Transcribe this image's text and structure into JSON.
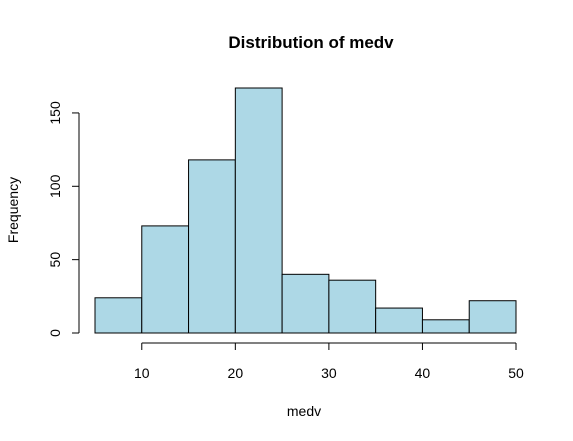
{
  "chart_data": {
    "type": "bar",
    "title": "Distribution of medv",
    "xlabel": "medv",
    "ylabel": "Frequency",
    "bins": [
      [
        5,
        10
      ],
      [
        10,
        15
      ],
      [
        15,
        20
      ],
      [
        20,
        25
      ],
      [
        25,
        30
      ],
      [
        30,
        35
      ],
      [
        35,
        40
      ],
      [
        40,
        45
      ],
      [
        45,
        50
      ]
    ],
    "values": [
      24,
      73,
      118,
      167,
      40,
      36,
      17,
      9,
      22
    ],
    "xlim": [
      5,
      50
    ],
    "ylim": [
      0,
      167
    ],
    "xticks": [
      10,
      20,
      30,
      40,
      50
    ],
    "yticks": [
      0,
      50,
      100,
      150
    ],
    "bar_color": "#add8e6",
    "grid": false
  }
}
